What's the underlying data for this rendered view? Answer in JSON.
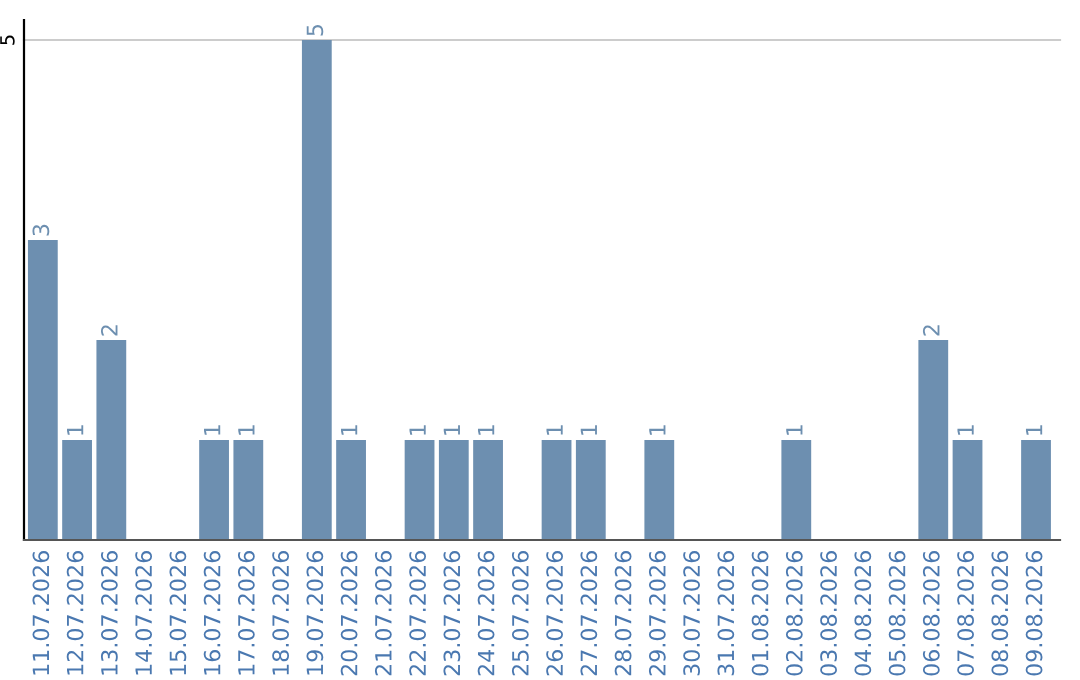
{
  "chart_data": {
    "type": "bar",
    "categories": [
      "11.07.2026",
      "12.07.2026",
      "13.07.2026",
      "14.07.2026",
      "15.07.2026",
      "16.07.2026",
      "17.07.2026",
      "18.07.2026",
      "19.07.2026",
      "20.07.2026",
      "21.07.2026",
      "22.07.2026",
      "23.07.2026",
      "24.07.2026",
      "25.07.2026",
      "26.07.2026",
      "27.07.2026",
      "28.07.2026",
      "29.07.2026",
      "30.07.2026",
      "31.07.2026",
      "01.08.2026",
      "02.08.2026",
      "03.08.2026",
      "04.08.2026",
      "05.08.2026",
      "06.08.2026",
      "07.08.2026",
      "08.08.2026",
      "09.08.2026"
    ],
    "values": [
      3,
      1,
      2,
      0,
      0,
      1,
      1,
      0,
      5,
      1,
      0,
      1,
      1,
      1,
      0,
      1,
      1,
      0,
      1,
      0,
      0,
      0,
      1,
      0,
      0,
      0,
      2,
      1,
      0,
      1
    ],
    "value_labels": [
      "3",
      "1",
      "2",
      null,
      null,
      "1",
      "1",
      null,
      "5",
      "1",
      null,
      "1",
      "1",
      "1",
      null,
      "1",
      "1",
      null,
      "1",
      null,
      null,
      null,
      "1",
      null,
      null,
      null,
      "2",
      "1",
      null,
      "1"
    ],
    "color": "#6d8fb0",
    "ylim": [
      0,
      5.2
    ],
    "yticks": [
      5
    ],
    "grid": "y"
  }
}
